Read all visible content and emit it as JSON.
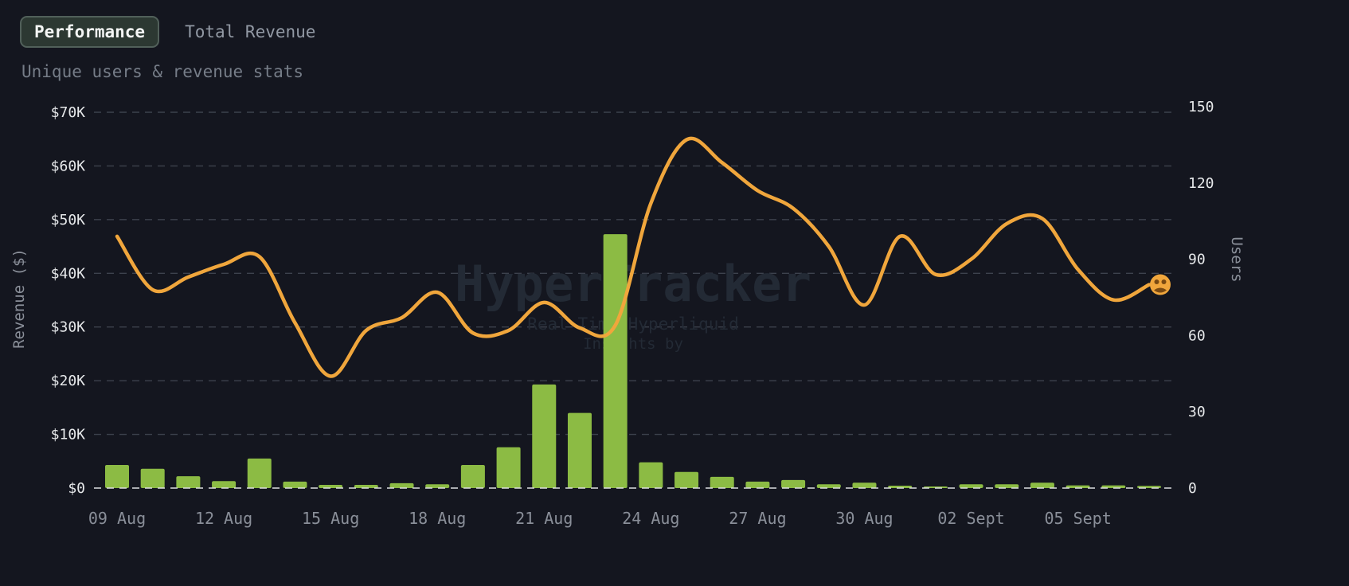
{
  "header": {
    "tabs": [
      {
        "label": "Performance",
        "active": true
      },
      {
        "label": "Total Revenue",
        "active": false
      }
    ],
    "subtitle": "Unique users & revenue stats"
  },
  "watermark": {
    "title": "HyperTracker",
    "line2": "Real Time Hyperliquid",
    "line3": "Insights by"
  },
  "colors": {
    "background": "#14161f",
    "bar": "#8cbb44",
    "line": "#f0a63c",
    "grid": "#3d424d",
    "zero_line": "#dcdee1",
    "tick_label": "#e6e8ea",
    "date_label": "#8a8f99",
    "axis_title": "#8a8f99",
    "watermark": "#232a35",
    "emoji_face": "#7a4a12"
  },
  "chart_data": {
    "type": "bar",
    "subtype": "combo bar+line, dual y-axis",
    "x": [
      "09 Aug",
      "10 Aug",
      "11 Aug",
      "12 Aug",
      "13 Aug",
      "14 Aug",
      "15 Aug",
      "16 Aug",
      "17 Aug",
      "18 Aug",
      "19 Aug",
      "20 Aug",
      "21 Aug",
      "22 Aug",
      "23 Aug",
      "24 Aug",
      "25 Aug",
      "26 Aug",
      "27 Aug",
      "28 Aug",
      "29 Aug",
      "30 Aug",
      "31 Aug",
      "01 Sept",
      "02 Sept",
      "03 Sept",
      "04 Sept",
      "05 Sept",
      "06 Sept",
      "07 Sept"
    ],
    "x_tick_labels": [
      "09 Aug",
      "12 Aug",
      "15 Aug",
      "18 Aug",
      "21 Aug",
      "24 Aug",
      "27 Aug",
      "30 Aug",
      "02 Sept",
      "05 Sept"
    ],
    "x_tick_every": 3,
    "series": [
      {
        "name": "Revenue",
        "type": "bar",
        "axis": "left",
        "values": [
          4300,
          3600,
          2200,
          1300,
          5500,
          1200,
          600,
          600,
          900,
          700,
          4300,
          7600,
          19300,
          14000,
          47300,
          4800,
          3000,
          2100,
          1200,
          1500,
          700,
          1000,
          450,
          300,
          700,
          700,
          1000,
          500,
          500,
          400
        ]
      },
      {
        "name": "Users",
        "type": "line",
        "axis": "right",
        "values": [
          99,
          78,
          83,
          88,
          91,
          65,
          44,
          62,
          67,
          77,
          61,
          62,
          73,
          63,
          64,
          112,
          137,
          128,
          117,
          110,
          95,
          72,
          99,
          84,
          90,
          104,
          106,
          86,
          74,
          80
        ]
      }
    ],
    "left_axis": {
      "title": "Revenue ($)",
      "max": 70000,
      "ticks": [
        0,
        10000,
        20000,
        30000,
        40000,
        50000,
        60000,
        70000
      ],
      "tick_labels": [
        "$0",
        "$10K",
        "$20K",
        "$30K",
        "$40K",
        "$50K",
        "$60K",
        "$70K"
      ]
    },
    "right_axis": {
      "title": "Users",
      "max": 150,
      "ticks": [
        0,
        30,
        60,
        90,
        120,
        150
      ],
      "tick_labels": [
        "0",
        "30",
        "60",
        "90",
        "120",
        "150"
      ]
    },
    "grid": "dashed horizontal",
    "legend": "none",
    "line_end_marker": "orange users emoji badge"
  }
}
